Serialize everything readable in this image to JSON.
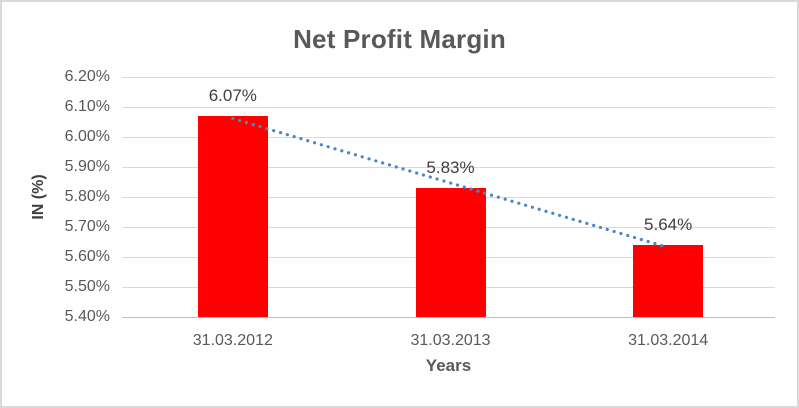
{
  "chart_data": {
    "type": "bar",
    "title": "Net Profit Margin",
    "xlabel": "Years",
    "ylabel": "IN (%)",
    "categories": [
      "31.03.2012",
      "31.03.2013",
      "31.03.2014"
    ],
    "values": [
      6.07,
      5.83,
      5.64
    ],
    "data_labels": [
      "6.07%",
      "5.83%",
      "5.64%"
    ],
    "ytick_labels": [
      "6.20%",
      "6.10%",
      "6.00%",
      "5.90%",
      "5.80%",
      "5.70%",
      "5.60%",
      "5.50%",
      "5.40%"
    ],
    "ylim": [
      5.4,
      6.2
    ],
    "ytick_step": 0.1,
    "grid": true,
    "legend": false,
    "trendline": {
      "type": "linear",
      "style": "dotted",
      "color": "#4A86C8"
    },
    "colors": {
      "bar": "#FF0000",
      "gridline": "#D9D9D9",
      "axis_line": "#BFBFBF",
      "title_text": "#595959",
      "tick_text": "#595959",
      "data_label_text": "#404040",
      "chart_border": "#D9D9D9",
      "background": "#FFFFFF"
    }
  }
}
